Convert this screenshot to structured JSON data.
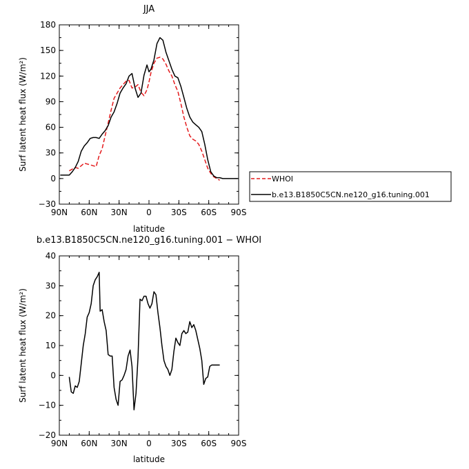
{
  "chart_data": [
    {
      "type": "line",
      "title": "JJA",
      "xlabel": "latitude",
      "ylabel": "Surf latent heat flux (W/m²)",
      "xlim": [
        90,
        -90
      ],
      "ylim": [
        -30,
        180
      ],
      "x_ticks": [
        90,
        60,
        30,
        0,
        -30,
        -60,
        -90
      ],
      "x_tick_labels": [
        "90N",
        "60N",
        "30N",
        "0",
        "30S",
        "60S",
        "90S"
      ],
      "y_ticks": [
        -30,
        0,
        30,
        60,
        90,
        120,
        150,
        180
      ],
      "y_tick_labels": [
        "−30",
        "0",
        "30",
        "60",
        "90",
        "120",
        "150",
        "180"
      ],
      "grid": false,
      "legend_placement": "right, outside",
      "series": [
        {
          "name": "WHOI",
          "color": "#e41a1c",
          "dash": "dashed",
          "x": [
            80,
            77,
            74,
            71,
            68,
            65,
            62,
            59,
            56,
            53,
            50,
            47,
            44,
            41,
            38,
            35,
            32,
            29,
            26,
            23,
            20,
            17,
            14,
            11,
            8,
            5,
            2,
            0,
            -2,
            -5,
            -8,
            -11,
            -14,
            -17,
            -20,
            -23,
            -26,
            -29,
            -32,
            -35,
            -38,
            -41,
            -44,
            -47,
            -50,
            -53,
            -56,
            -59,
            -62,
            -65,
            -68,
            -71
          ],
          "y": [
            9,
            11,
            13,
            12,
            15,
            18,
            17,
            16,
            15,
            14,
            27,
            35,
            50,
            65,
            80,
            94,
            100,
            106,
            110,
            114,
            115,
            106,
            107,
            110,
            101,
            97,
            104,
            113,
            124,
            135,
            141,
            142,
            140,
            134,
            126,
            120,
            110,
            102,
            88,
            72,
            60,
            50,
            46,
            44,
            40,
            32,
            22,
            12,
            6,
            2,
            0,
            -2
          ]
        },
        {
          "name": "b.e13.B1850C5CN.ne120_g16.tuning.001",
          "color": "#000000",
          "dash": "solid",
          "x": [
            89,
            86,
            83,
            80,
            77,
            74,
            71,
            68,
            65,
            62,
            59,
            56,
            53,
            50,
            47,
            44,
            41,
            38,
            35,
            32,
            29,
            26,
            23,
            20,
            17,
            14,
            11,
            8,
            5,
            2,
            0,
            -2,
            -5,
            -8,
            -11,
            -14,
            -17,
            -20,
            -23,
            -26,
            -29,
            -32,
            -35,
            -38,
            -41,
            -44,
            -47,
            -50,
            -53,
            -56,
            -59,
            -62,
            -65,
            -68,
            -71,
            -74,
            -77,
            -80,
            -83,
            -86,
            -89
          ],
          "y": [
            4,
            4,
            4,
            4,
            8,
            13,
            20,
            32,
            38,
            42,
            47,
            48,
            48,
            47,
            52,
            56,
            62,
            72,
            78,
            88,
            100,
            106,
            111,
            120,
            123,
            106,
            95,
            100,
            121,
            133,
            125,
            128,
            139,
            158,
            165,
            162,
            148,
            138,
            128,
            120,
            118,
            108,
            95,
            82,
            72,
            66,
            63,
            60,
            55,
            40,
            22,
            8,
            3,
            1,
            1,
            0,
            0,
            0,
            0,
            0,
            0
          ]
        }
      ]
    },
    {
      "type": "line",
      "title": "b.e13.B1850C5CN.ne120_g16.tuning.001 − WHOI",
      "xlabel": "latitude",
      "ylabel": "Surf latent heat flux (W/m²)",
      "xlim": [
        90,
        -90
      ],
      "ylim": [
        -20,
        40
      ],
      "x_ticks": [
        90,
        60,
        30,
        0,
        -30,
        -60,
        -90
      ],
      "x_tick_labels": [
        "90N",
        "60N",
        "30N",
        "0",
        "30S",
        "60S",
        "90S"
      ],
      "y_ticks": [
        -20,
        -10,
        0,
        10,
        20,
        30,
        40
      ],
      "y_tick_labels": [
        "−20",
        "−10",
        "0",
        "10",
        "20",
        "30",
        "40"
      ],
      "grid": false,
      "series": [
        {
          "color": "#000000",
          "dash": "solid",
          "x": [
            80,
            78,
            76,
            74,
            72,
            70,
            68,
            66,
            64,
            62,
            60,
            58,
            56,
            54,
            52,
            50,
            49,
            47,
            45,
            43,
            41,
            39,
            37,
            35,
            33,
            31,
            29,
            27,
            25,
            23,
            21,
            19,
            17,
            15,
            13,
            11,
            9,
            7,
            5,
            3,
            1,
            -1,
            -3,
            -5,
            -7,
            -9,
            -11,
            -13,
            -15,
            -17,
            -19,
            -21,
            -23,
            -25,
            -27,
            -29,
            -31,
            -33,
            -35,
            -37,
            -39,
            -41,
            -43,
            -45,
            -47,
            -49,
            -51,
            -53,
            -55,
            -57,
            -59,
            -61,
            -63,
            -65,
            -67,
            -69,
            -71
          ],
          "y": [
            -0.5,
            -5.5,
            -6,
            -3.5,
            -4,
            -2,
            4,
            10,
            14,
            19.5,
            21,
            24,
            30,
            32,
            33,
            34.5,
            21.5,
            22,
            18,
            15,
            7,
            6.5,
            6.5,
            -4,
            -8,
            -10,
            -2,
            -1.5,
            0,
            2,
            6.5,
            8.5,
            3,
            -11.5,
            -6,
            6,
            25.5,
            25,
            26.5,
            26.5,
            24,
            22.5,
            24,
            28,
            27,
            21,
            16,
            10,
            5,
            3,
            2,
            0,
            2,
            8,
            12.5,
            11,
            10,
            14,
            15,
            14,
            14.5,
            18,
            16,
            17,
            15,
            12,
            9,
            5,
            -3,
            -1,
            -0.5,
            3,
            3.5,
            3.5,
            3.5,
            3.5,
            3.5
          ]
        }
      ]
    }
  ]
}
